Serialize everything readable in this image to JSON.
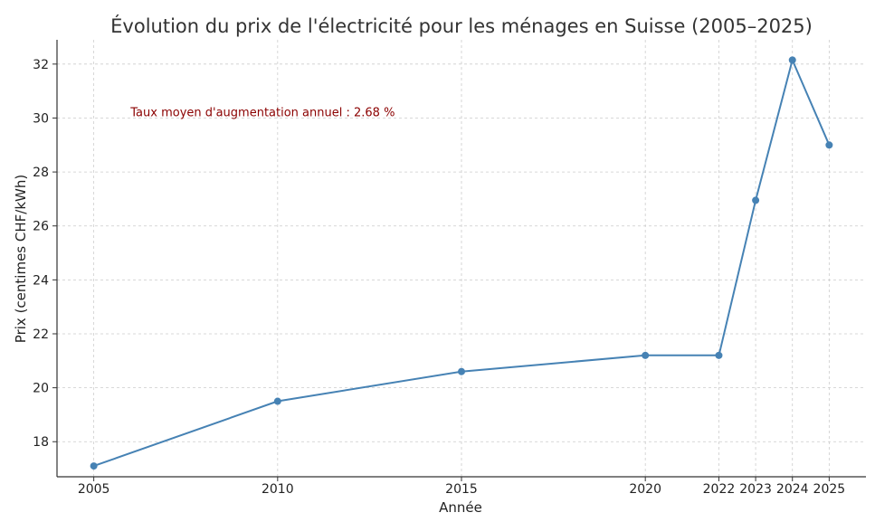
{
  "chart_data": {
    "type": "line",
    "title": "Évolution du prix de l'électricité pour les ménages en Suisse (2005–2025)",
    "xlabel": "Année",
    "ylabel": "Prix (centimes CHF/kWh)",
    "x": [
      2005,
      2010,
      2015,
      2020,
      2022,
      2023,
      2024,
      2025
    ],
    "series": [
      {
        "values": [
          17.1,
          19.5,
          20.6,
          21.2,
          21.2,
          26.95,
          32.15,
          29.0
        ]
      }
    ],
    "xlim": [
      2004,
      2026
    ],
    "ylim": [
      16.7,
      32.9
    ],
    "yticks": [
      18,
      20,
      22,
      24,
      26,
      28,
      30,
      32
    ],
    "xticks": [
      2005,
      2010,
      2015,
      2020,
      2022,
      2023,
      2024,
      2025
    ],
    "annotation": {
      "text": "Taux moyen d'augmentation annuel : 2.68 %",
      "x": 2006,
      "y": 30.2
    },
    "grid": true,
    "colors": {
      "line": "#4682b4",
      "annotation": "#8b0000"
    }
  }
}
